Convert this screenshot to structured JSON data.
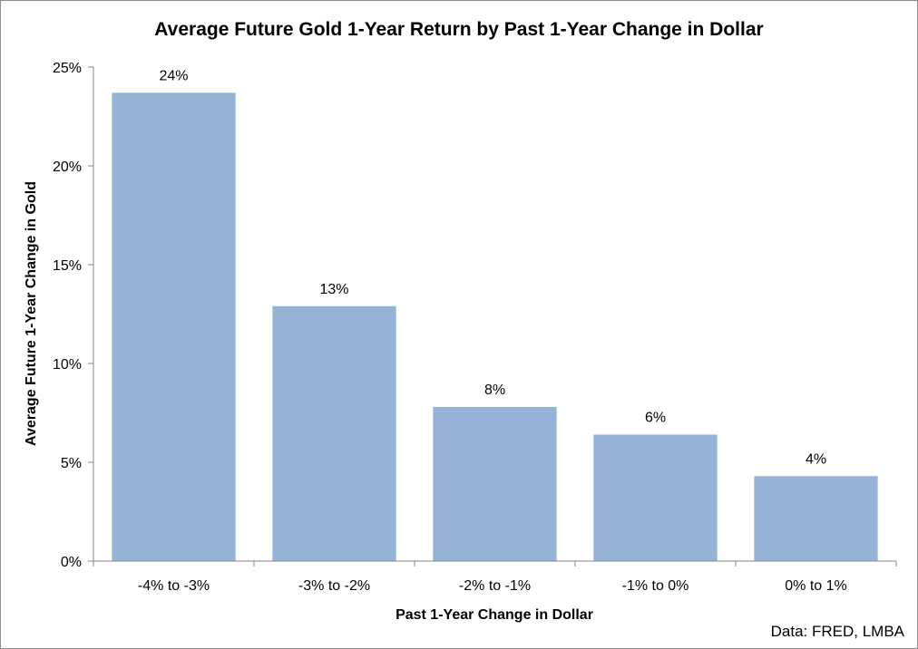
{
  "chart_data": {
    "type": "bar",
    "title": "Average Future Gold 1-Year Return by Past 1-Year Change in Dollar",
    "xlabel": "Past 1-Year Change in Dollar",
    "ylabel": "Average Future 1-Year Change in  Gold",
    "categories": [
      "-4% to -3%",
      "-3% to -2%",
      "-2% to -1%",
      "-1% to 0%",
      "0% to 1%"
    ],
    "values": [
      23.7,
      12.9,
      7.8,
      6.4,
      4.3
    ],
    "data_labels": [
      "24%",
      "13%",
      "8%",
      "6%",
      "4%"
    ],
    "ylim": [
      0,
      25
    ],
    "yticks": [
      0,
      5,
      10,
      15,
      20,
      25
    ],
    "ytick_labels": [
      "0%",
      "5%",
      "10%",
      "15%",
      "20%",
      "25%"
    ],
    "bar_color": "#95b3d7",
    "grid": false,
    "legend": "none"
  },
  "source_note": "Data: FRED, LMBA"
}
